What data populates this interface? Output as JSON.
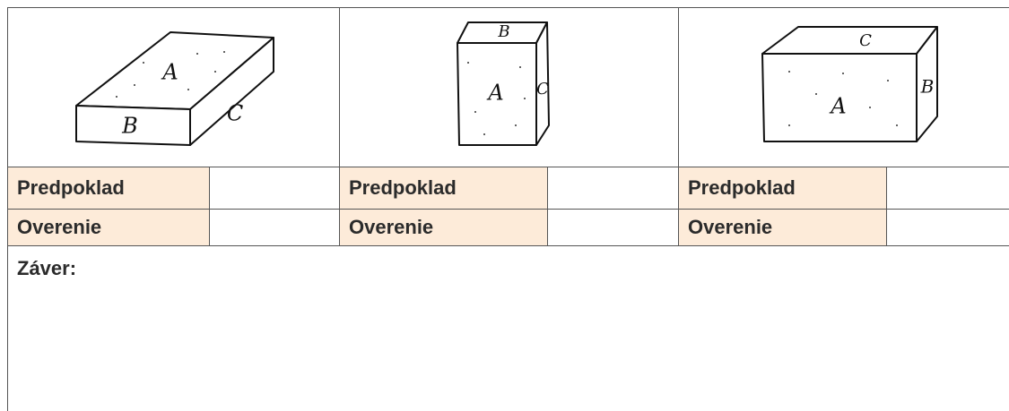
{
  "blocks": [
    {
      "labels": [
        "A",
        "B",
        "C"
      ]
    },
    {
      "labels": [
        "A",
        "B",
        "C"
      ]
    },
    {
      "labels": [
        "A",
        "C",
        "B"
      ]
    }
  ],
  "rows": [
    [
      "Predpoklad",
      "Predpoklad",
      "Predpoklad"
    ],
    [
      "Overenie",
      "Overenie",
      "Overenie"
    ]
  ],
  "conclusion": "Záver:"
}
